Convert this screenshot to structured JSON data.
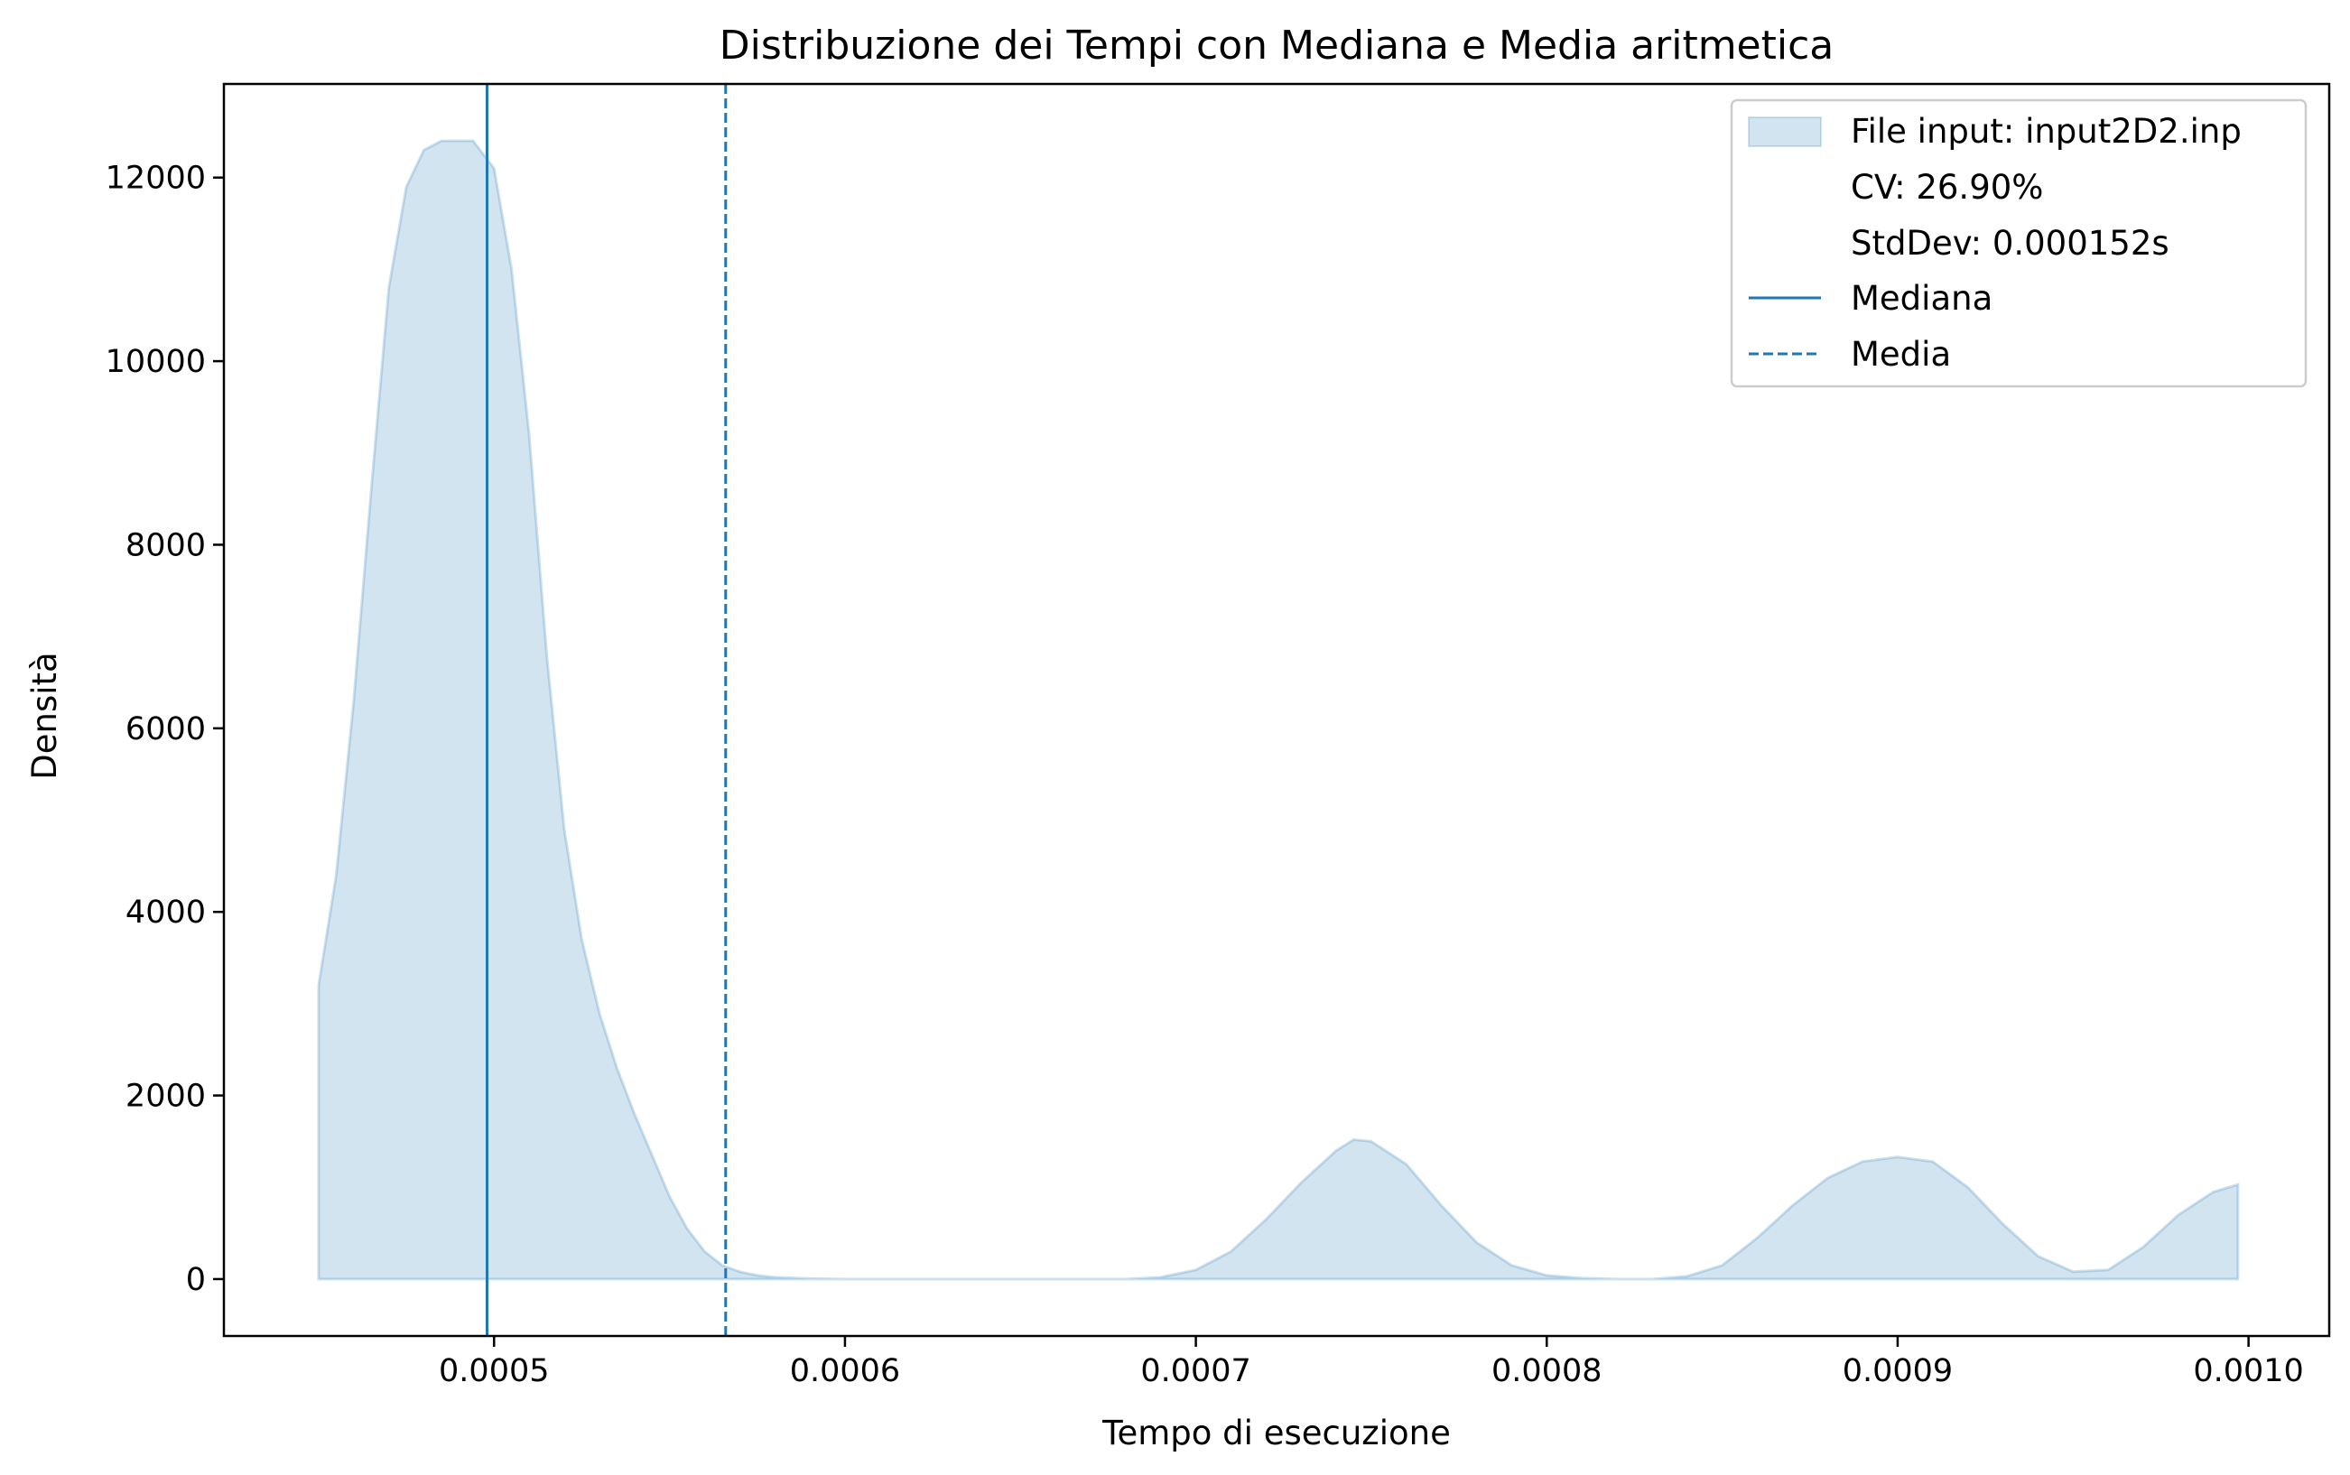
{
  "chart_data": {
    "type": "area",
    "title": "Distribuzione dei Tempi con Mediana e Media aritmetica",
    "xlabel": "Tempo di esecuzione",
    "ylabel": "Densità",
    "xlim": [
      0.000423,
      0.001023
    ],
    "ylim": [
      -620,
      13020
    ],
    "x_ticks": [
      0.0005,
      0.0006,
      0.0007,
      0.0008,
      0.0009,
      0.001
    ],
    "x_tick_labels": [
      "0.0005",
      "0.0006",
      "0.0007",
      "0.0008",
      "0.0009",
      "0.0010"
    ],
    "y_ticks": [
      0,
      2000,
      4000,
      6000,
      8000,
      10000,
      12000
    ],
    "y_tick_labels": [
      "0",
      "2000",
      "4000",
      "6000",
      "8000",
      "10000",
      "12000"
    ],
    "grid": false,
    "legend_position": "top-right",
    "series": [
      {
        "name": "File input: input2D2.inp",
        "kind": "density-fill",
        "color": "#1f77b4",
        "x": [
          0.00045,
          0.000455,
          0.00046,
          0.000465,
          0.00047,
          0.000475,
          0.00048,
          0.000485,
          0.00049,
          0.000494,
          0.0005,
          0.000505,
          0.00051,
          0.000515,
          0.00052,
          0.000525,
          0.00053,
          0.000535,
          0.00054,
          0.000545,
          0.00055,
          0.000555,
          0.00056,
          0.000565,
          0.00057,
          0.000575,
          0.00058,
          0.00059,
          0.0006,
          0.00062,
          0.00064,
          0.00066,
          0.00068,
          0.00069,
          0.0007,
          0.00071,
          0.00072,
          0.00073,
          0.00074,
          0.000745,
          0.00075,
          0.00076,
          0.00077,
          0.00078,
          0.00079,
          0.0008,
          0.00081,
          0.00082,
          0.00083,
          0.00084,
          0.00085,
          0.00086,
          0.00087,
          0.00088,
          0.00089,
          0.0009,
          0.00091,
          0.00092,
          0.00093,
          0.00094,
          0.00095,
          0.00096,
          0.00097,
          0.00098,
          0.00099,
          0.000997
        ],
        "y": [
          3200,
          4400,
          6300,
          8600,
          10800,
          11900,
          12300,
          12400,
          12400,
          12400,
          12100,
          11000,
          9200,
          6800,
          4900,
          3700,
          2900,
          2300,
          1800,
          1350,
          900,
          550,
          300,
          150,
          80,
          40,
          20,
          5,
          0,
          0,
          0,
          0,
          0,
          20,
          100,
          300,
          650,
          1050,
          1400,
          1520,
          1500,
          1250,
          800,
          400,
          150,
          40,
          10,
          0,
          0,
          30,
          150,
          450,
          800,
          1100,
          1280,
          1330,
          1280,
          1000,
          600,
          250,
          80,
          100,
          350,
          700,
          950,
          1030
        ]
      },
      {
        "name": "CV: 26.90%",
        "kind": "legend-text"
      },
      {
        "name": "StdDev: 0.000152s",
        "kind": "legend-text"
      },
      {
        "name": "Mediana",
        "kind": "vline-solid",
        "color": "#1f77b4",
        "x": 0.000498
      },
      {
        "name": "Media",
        "kind": "vline-dashed",
        "color": "#1f77b4",
        "x": 0.000566
      }
    ]
  }
}
